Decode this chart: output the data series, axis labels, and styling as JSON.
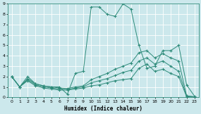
{
  "xlabel": "Humidex (Indice chaleur)",
  "bg_color": "#cce8ec",
  "grid_color": "#ffffff",
  "line_color": "#2e8b7a",
  "xlim": [
    -0.5,
    23.5
  ],
  "ylim": [
    0,
    9
  ],
  "xticks": [
    0,
    1,
    2,
    3,
    4,
    5,
    6,
    7,
    8,
    9,
    10,
    11,
    12,
    13,
    14,
    15,
    16,
    17,
    18,
    19,
    20,
    21,
    22,
    23
  ],
  "yticks": [
    0,
    1,
    2,
    3,
    4,
    5,
    6,
    7,
    8,
    9
  ],
  "series": [
    {
      "x": [
        0,
        1,
        2,
        3,
        4,
        5,
        6,
        7,
        8,
        9,
        10,
        11,
        12,
        13,
        14,
        15,
        16,
        17,
        18,
        19,
        20,
        21,
        22,
        23
      ],
      "y": [
        2,
        1,
        2,
        1.3,
        1.1,
        1.0,
        1.0,
        0.3,
        2.3,
        2.5,
        8.7,
        8.7,
        8.0,
        7.8,
        9.0,
        8.5,
        5.0,
        2.8,
        3.0,
        4.5,
        4.5,
        5.0,
        1.2,
        0.1
      ]
    },
    {
      "x": [
        0,
        1,
        2,
        3,
        4,
        5,
        6,
        7,
        8,
        9,
        10,
        11,
        12,
        13,
        14,
        15,
        16,
        17,
        18,
        19,
        20,
        21,
        22,
        23
      ],
      "y": [
        2,
        1,
        1.8,
        1.3,
        1.1,
        1.0,
        0.9,
        0.85,
        1.0,
        1.1,
        1.7,
        2.0,
        2.3,
        2.7,
        3.0,
        3.3,
        4.3,
        4.5,
        3.8,
        4.2,
        3.8,
        3.5,
        0.15,
        0.05
      ]
    },
    {
      "x": [
        0,
        1,
        2,
        3,
        4,
        5,
        6,
        7,
        8,
        9,
        10,
        11,
        12,
        13,
        14,
        15,
        16,
        17,
        18,
        19,
        20,
        21,
        22,
        23
      ],
      "y": [
        2,
        1,
        1.7,
        1.2,
        1.0,
        0.9,
        0.8,
        0.75,
        0.9,
        1.0,
        1.4,
        1.6,
        1.8,
        2.1,
        2.4,
        2.6,
        3.5,
        3.8,
        3.2,
        3.5,
        3.0,
        2.5,
        0.1,
        0.05
      ]
    },
    {
      "x": [
        0,
        1,
        2,
        3,
        4,
        5,
        6,
        7,
        8,
        9,
        10,
        11,
        12,
        13,
        14,
        15,
        16,
        17,
        18,
        19,
        20,
        21,
        22,
        23
      ],
      "y": [
        2,
        1,
        1.6,
        1.1,
        0.9,
        0.8,
        0.7,
        0.7,
        0.8,
        0.9,
        1.1,
        1.2,
        1.4,
        1.6,
        1.7,
        1.8,
        2.8,
        3.2,
        2.5,
        2.7,
        2.3,
        2.0,
        0.05,
        0.0
      ]
    }
  ]
}
